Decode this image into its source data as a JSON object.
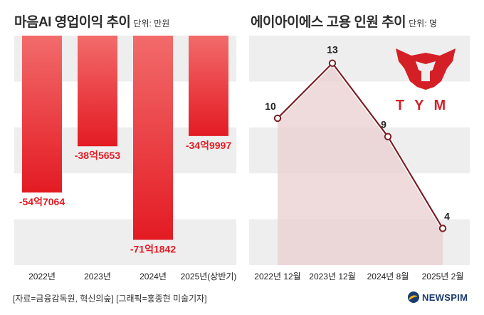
{
  "chart_data": [
    {
      "type": "bar",
      "title": "마음AI 영업이익 추이",
      "unit": "단위: 만원",
      "categories": [
        "2022년",
        "2023년",
        "2024년",
        "2025년(상반기)"
      ],
      "values": [
        -547064,
        -385653,
        -711842,
        -349997
      ],
      "value_labels": [
        "-54억7064",
        "-38억5653",
        "-71억1842",
        "-34억9997"
      ],
      "ylim": [
        -800000,
        0
      ],
      "colors": {
        "bar_top": "#f26b6b",
        "bar_bottom": "#e31b23",
        "label": "#e31b23",
        "band": "#eeeeee"
      }
    },
    {
      "type": "line",
      "title": "에이아이에스 고용 인원 추이",
      "unit": "단위: 명",
      "categories": [
        "2022년 12월",
        "2023년 12월",
        "2024년 8월",
        "2025년 2월"
      ],
      "values": [
        10,
        13,
        9,
        4
      ],
      "value_labels": [
        "10",
        "13",
        "9",
        "4"
      ],
      "ylim": [
        2,
        14.5
      ],
      "colors": {
        "line": "#7a1f26",
        "area": "#e9cfd0",
        "marker_fill": "#ffffff",
        "band": "#eeeeee"
      }
    }
  ],
  "logo": {
    "text": "TYM",
    "color": "#d41f26"
  },
  "footer": {
    "source": "[자료=금융감독원, 혁신의숲] [그래픽=홍종현 미술기자]"
  },
  "brand": {
    "name": "NEWSPIM",
    "color": "#1a3b6e"
  }
}
